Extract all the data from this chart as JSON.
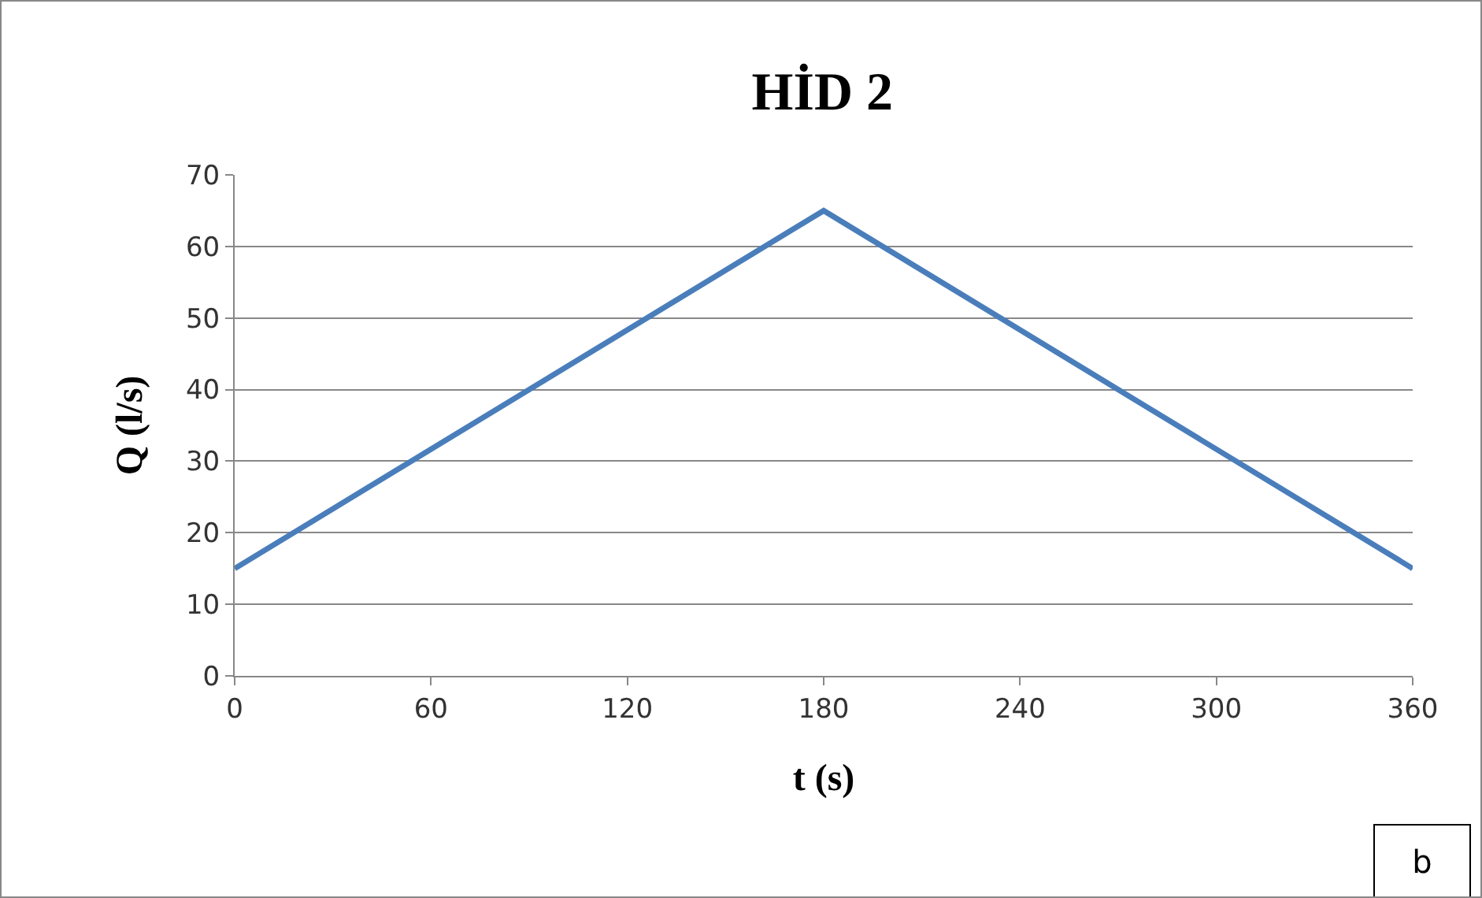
{
  "chart_data": {
    "type": "line",
    "title": "HİD 2",
    "xlabel": "t (s)",
    "ylabel": "Q (l/s)",
    "x": [
      0,
      180,
      360
    ],
    "series": [
      {
        "color": "#4a7ebb",
        "values": [
          15,
          65,
          15
        ]
      }
    ],
    "xlim": [
      0,
      360
    ],
    "xticks": [
      0,
      60,
      120,
      180,
      240,
      300,
      360
    ],
    "ylim": [
      0,
      70
    ],
    "yticks": [
      0,
      10,
      20,
      30,
      40,
      50,
      60,
      70
    ],
    "grid": "y",
    "legend": false,
    "marker": "none",
    "line_style": "solid",
    "annotations": [
      "b"
    ]
  }
}
